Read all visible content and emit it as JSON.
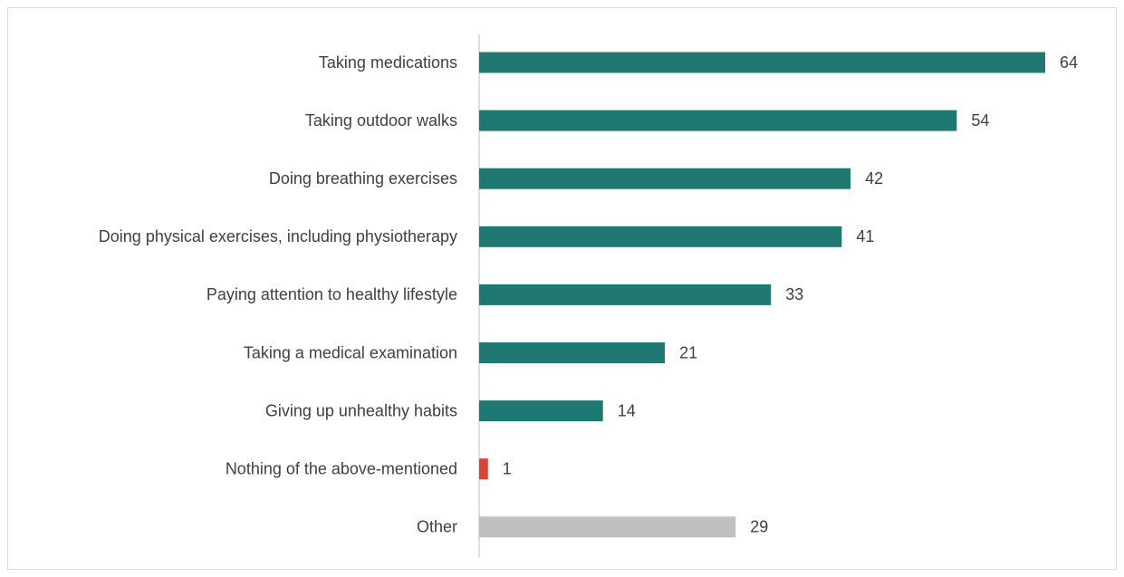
{
  "chart_data": {
    "type": "barh",
    "categories": [
      "Taking medications",
      "Taking outdoor walks",
      "Doing breathing exercises ",
      "Doing physical exercises, including physiotherapy",
      "Paying attention to healthy lifestyle",
      "Taking a medical examination",
      "Giving up unhealthy habits",
      "Nothing of the above-mentioned",
      "Other"
    ],
    "values": [
      64,
      54,
      42,
      41,
      33,
      21,
      14,
      1,
      29
    ],
    "colors": [
      "#1f7872",
      "#1f7872",
      "#1f7872",
      "#1f7872",
      "#1f7872",
      "#1f7872",
      "#1f7872",
      "#d9433a",
      "#bfbfbf"
    ]
  }
}
